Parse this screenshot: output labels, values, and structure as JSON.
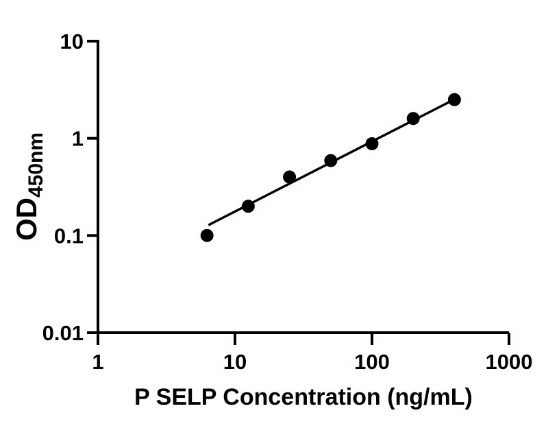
{
  "colors": {
    "background": "#ffffff",
    "foreground": "#000000",
    "marker": "#000000",
    "line": "#000000"
  },
  "chart_data": {
    "type": "scatter",
    "title": "",
    "xlabel": "P SELP Concentration (ng/mL)",
    "ylabel": "OD",
    "ylabel_subscript": "450nm",
    "x_scale": "log10",
    "y_scale": "log10",
    "xlim": [
      1,
      1000
    ],
    "ylim": [
      0.01,
      10
    ],
    "x_ticks": [
      1,
      10,
      100,
      1000
    ],
    "x_tick_labels": [
      "1",
      "10",
      "100",
      "1000"
    ],
    "y_ticks": [
      0.01,
      0.1,
      1,
      10
    ],
    "y_tick_labels": [
      "0.01",
      "0.1",
      "1",
      "10"
    ],
    "grid": false,
    "legend": "none",
    "series": [
      {
        "name": "trend-line",
        "type": "line",
        "color": "#000000",
        "x": [
          6.4,
          400
        ],
        "y": [
          0.128,
          2.52
        ]
      },
      {
        "name": "standard-points",
        "type": "scatter",
        "marker": "circle",
        "color": "#000000",
        "x": [
          6.25,
          12.5,
          25,
          50,
          100,
          200,
          400
        ],
        "y": [
          0.1,
          0.2,
          0.4,
          0.59,
          0.88,
          1.6,
          2.5
        ]
      }
    ]
  }
}
